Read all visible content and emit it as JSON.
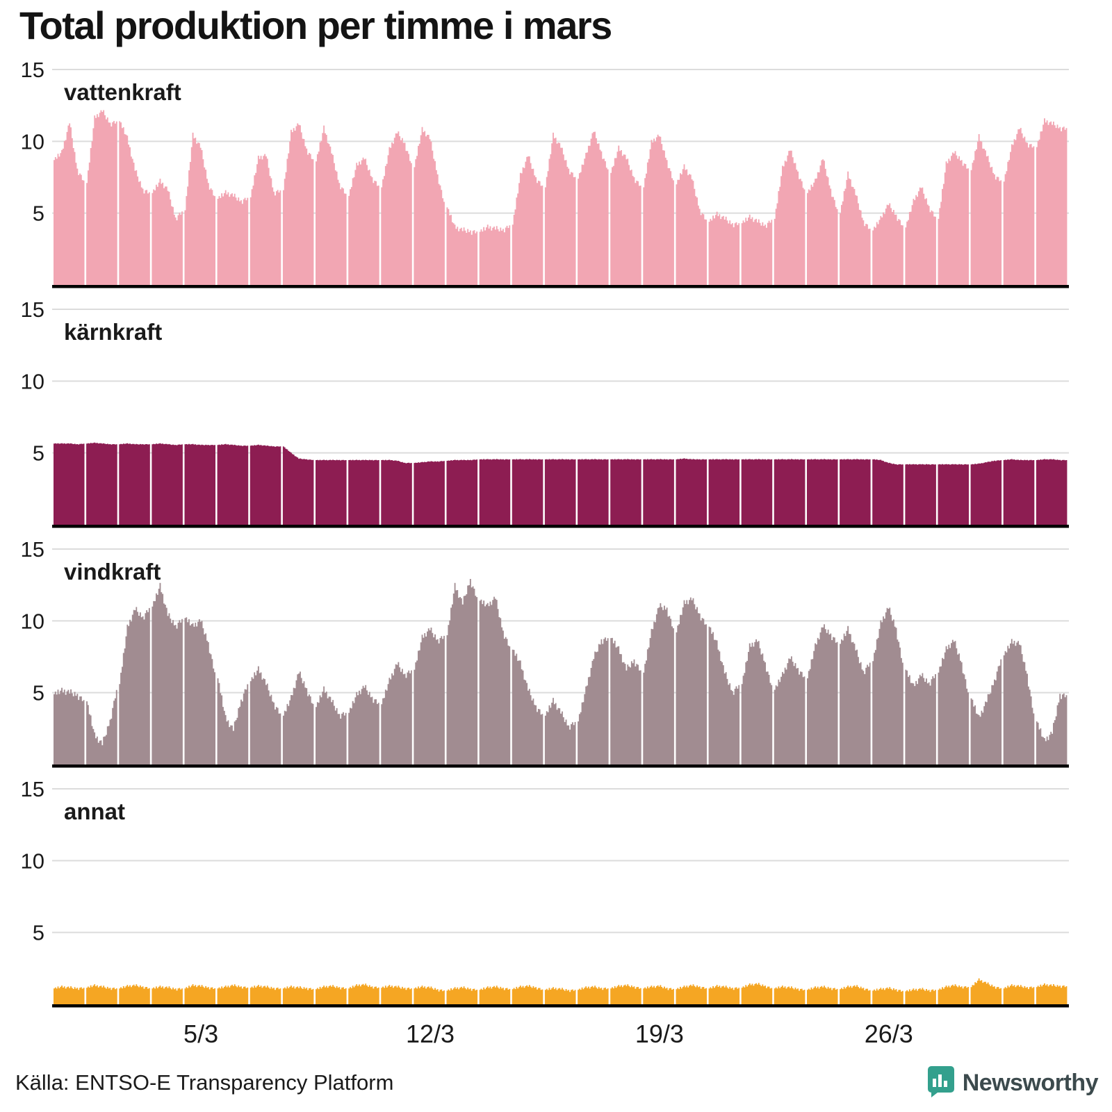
{
  "title": "Total produktion per timme i mars",
  "source": "Källa: ENTSO-E Transparency Platform",
  "logo_text": "Newsworthy",
  "colors": {
    "background": "#ffffff",
    "grid": "#dcdcdc",
    "axis": "#000000",
    "text": "#1a1a1a",
    "brand_teal": "#33a08d"
  },
  "y_ticks": [
    15,
    10,
    5
  ],
  "x_axis": {
    "ticks": [
      {
        "label": "5/3",
        "day": 5
      },
      {
        "label": "12/3",
        "day": 12
      },
      {
        "label": "19/3",
        "day": 19
      },
      {
        "label": "26/3",
        "day": 26
      }
    ]
  },
  "hour_texture": [
    0.0,
    0.12,
    -0.08,
    0.18,
    -0.1,
    0.06,
    0.2,
    -0.06,
    0.12,
    -0.16,
    0.05,
    0.15,
    -0.05,
    0.22,
    0.02,
    -0.12,
    0.16,
    -0.04,
    0.1,
    -0.2,
    0.06,
    0.12,
    -0.1,
    0.02
  ],
  "chart_data": [
    {
      "type": "bar",
      "title": "vattenkraft",
      "color": "#F2A6B3",
      "ylim": [
        0,
        15
      ],
      "days": 31,
      "samples_per_day": 4,
      "sample_hours": [
        0,
        6,
        12,
        18
      ],
      "texture_scale": 1.0,
      "values": [
        8.7,
        9.2,
        11.3,
        8.0,
        7.1,
        11.6,
        12.1,
        11.2,
        11.4,
        10.2,
        8.0,
        6.6,
        6.4,
        7.2,
        6.6,
        4.6,
        5.2,
        10.4,
        9.6,
        7.0,
        6.0,
        6.4,
        6.2,
        5.8,
        6.1,
        8.8,
        9.0,
        6.4,
        6.6,
        10.6,
        11.2,
        9.4,
        8.6,
        10.9,
        9.2,
        7.0,
        6.2,
        8.3,
        8.8,
        7.4,
        6.8,
        9.4,
        10.6,
        9.8,
        8.2,
        10.8,
        10.2,
        7.6,
        5.4,
        4.0,
        3.8,
        3.7,
        3.7,
        4.0,
        3.9,
        3.8,
        4.2,
        7.6,
        9.0,
        7.4,
        6.8,
        10.4,
        9.6,
        8.0,
        7.4,
        9.0,
        10.7,
        9.2,
        7.8,
        9.5,
        8.8,
        7.4,
        6.8,
        9.9,
        10.4,
        8.6,
        7.0,
        8.2,
        7.4,
        5.2,
        4.4,
        4.9,
        4.6,
        4.2,
        4.3,
        4.7,
        4.4,
        4.1,
        4.6,
        8.1,
        9.4,
        7.8,
        6.4,
        7.2,
        8.8,
        6.6,
        5.0,
        7.7,
        6.3,
        4.4,
        3.8,
        4.6,
        5.6,
        4.8,
        4.0,
        5.8,
        6.8,
        5.4,
        4.6,
        8.4,
        9.2,
        8.6,
        8.0,
        10.3,
        9.0,
        7.6,
        7.2,
        9.6,
        10.9,
        9.8,
        9.6,
        11.4,
        11.2,
        10.9
      ]
    },
    {
      "type": "bar",
      "title": "kärnkraft",
      "color": "#8D1D52",
      "ylim": [
        0,
        15
      ],
      "days": 31,
      "samples_per_day": 4,
      "sample_hours": [
        0,
        6,
        12,
        18
      ],
      "texture_scale": 0.12,
      "values": [
        5.65,
        5.65,
        5.65,
        5.6,
        5.65,
        5.7,
        5.65,
        5.6,
        5.6,
        5.65,
        5.6,
        5.6,
        5.6,
        5.65,
        5.6,
        5.55,
        5.6,
        5.6,
        5.55,
        5.55,
        5.55,
        5.6,
        5.55,
        5.5,
        5.5,
        5.55,
        5.5,
        5.45,
        5.45,
        5.0,
        4.6,
        4.55,
        4.5,
        4.5,
        4.5,
        4.5,
        4.5,
        4.5,
        4.5,
        4.5,
        4.5,
        4.5,
        4.45,
        4.3,
        4.3,
        4.35,
        4.4,
        4.4,
        4.45,
        4.5,
        4.5,
        4.5,
        4.55,
        4.55,
        4.55,
        4.55,
        4.55,
        4.55,
        4.55,
        4.55,
        4.55,
        4.55,
        4.55,
        4.55,
        4.55,
        4.55,
        4.55,
        4.55,
        4.55,
        4.55,
        4.55,
        4.55,
        4.55,
        4.55,
        4.55,
        4.55,
        4.55,
        4.6,
        4.55,
        4.55,
        4.55,
        4.55,
        4.55,
        4.55,
        4.55,
        4.55,
        4.55,
        4.55,
        4.55,
        4.55,
        4.55,
        4.55,
        4.55,
        4.55,
        4.55,
        4.55,
        4.55,
        4.55,
        4.55,
        4.55,
        4.55,
        4.5,
        4.3,
        4.2,
        4.2,
        4.2,
        4.2,
        4.2,
        4.2,
        4.2,
        4.2,
        4.2,
        4.2,
        4.25,
        4.35,
        4.45,
        4.5,
        4.55,
        4.5,
        4.5,
        4.5,
        4.55,
        4.55,
        4.5
      ]
    },
    {
      "type": "bar",
      "title": "vindkraft",
      "color": "#A18C91",
      "ylim": [
        0,
        15
      ],
      "days": 31,
      "samples_per_day": 4,
      "sample_hours": [
        0,
        6,
        12,
        18
      ],
      "texture_scale": 1.2,
      "values": [
        4.9,
        5.1,
        5.0,
        4.8,
        4.4,
        2.0,
        1.4,
        3.0,
        5.6,
        9.5,
        10.8,
        10.2,
        11.0,
        12.4,
        10.4,
        9.6,
        10.2,
        9.6,
        10.0,
        8.4,
        6.0,
        3.2,
        2.4,
        4.4,
        5.8,
        6.6,
        5.6,
        4.2,
        3.4,
        4.6,
        6.4,
        5.2,
        4.0,
        5.2,
        4.4,
        3.4,
        3.6,
        4.8,
        5.4,
        4.6,
        4.2,
        5.8,
        7.0,
        6.2,
        6.6,
        8.8,
        9.4,
        8.6,
        9.0,
        12.4,
        11.2,
        12.8,
        11.4,
        11.0,
        11.6,
        9.2,
        8.0,
        7.0,
        5.2,
        4.0,
        3.4,
        4.4,
        3.6,
        2.6,
        3.0,
        5.2,
        7.4,
        8.6,
        8.8,
        8.0,
        6.6,
        7.2,
        6.4,
        9.2,
        11.0,
        10.8,
        9.2,
        11.2,
        11.5,
        10.4,
        9.6,
        8.4,
        6.4,
        5.0,
        5.6,
        8.2,
        8.6,
        7.0,
        5.2,
        6.2,
        7.4,
        6.6,
        6.0,
        8.2,
        9.6,
        9.0,
        8.4,
        9.4,
        8.0,
        6.4,
        7.2,
        9.8,
        10.9,
        9.4,
        6.6,
        5.4,
        6.2,
        5.6,
        6.4,
        8.0,
        8.6,
        7.0,
        4.6,
        3.2,
        4.4,
        5.8,
        7.6,
        8.5,
        8.4,
        6.2,
        3.0,
        1.6,
        2.2,
        4.8
      ]
    },
    {
      "type": "bar",
      "title": "annat",
      "color": "#F5A623",
      "ylim": [
        0,
        15
      ],
      "days": 31,
      "samples_per_day": 4,
      "sample_hours": [
        0,
        6,
        12,
        18
      ],
      "texture_scale": 0.5,
      "values": [
        1.1,
        1.2,
        1.15,
        1.1,
        1.15,
        1.3,
        1.2,
        1.1,
        1.1,
        1.25,
        1.3,
        1.2,
        1.1,
        1.2,
        1.15,
        1.05,
        1.1,
        1.3,
        1.25,
        1.15,
        1.1,
        1.2,
        1.3,
        1.2,
        1.15,
        1.25,
        1.2,
        1.1,
        1.1,
        1.2,
        1.15,
        1.1,
        1.05,
        1.2,
        1.25,
        1.15,
        1.1,
        1.3,
        1.35,
        1.2,
        1.15,
        1.25,
        1.2,
        1.1,
        1.1,
        1.2,
        1.15,
        1.0,
        0.95,
        1.1,
        1.15,
        1.05,
        1.0,
        1.15,
        1.2,
        1.1,
        1.05,
        1.2,
        1.25,
        1.15,
        1.0,
        1.1,
        1.05,
        0.95,
        1.0,
        1.15,
        1.2,
        1.1,
        1.1,
        1.25,
        1.3,
        1.2,
        1.1,
        1.2,
        1.25,
        1.1,
        1.05,
        1.2,
        1.3,
        1.2,
        1.1,
        1.25,
        1.2,
        1.1,
        1.15,
        1.35,
        1.4,
        1.25,
        1.1,
        1.2,
        1.15,
        1.05,
        1.0,
        1.15,
        1.2,
        1.1,
        1.05,
        1.2,
        1.25,
        1.1,
        0.95,
        1.05,
        1.1,
        1.0,
        0.9,
        1.0,
        1.05,
        0.95,
        1.0,
        1.2,
        1.3,
        1.2,
        1.2,
        1.7,
        1.45,
        1.2,
        1.1,
        1.3,
        1.25,
        1.15,
        1.2,
        1.35,
        1.3,
        1.25
      ]
    }
  ]
}
